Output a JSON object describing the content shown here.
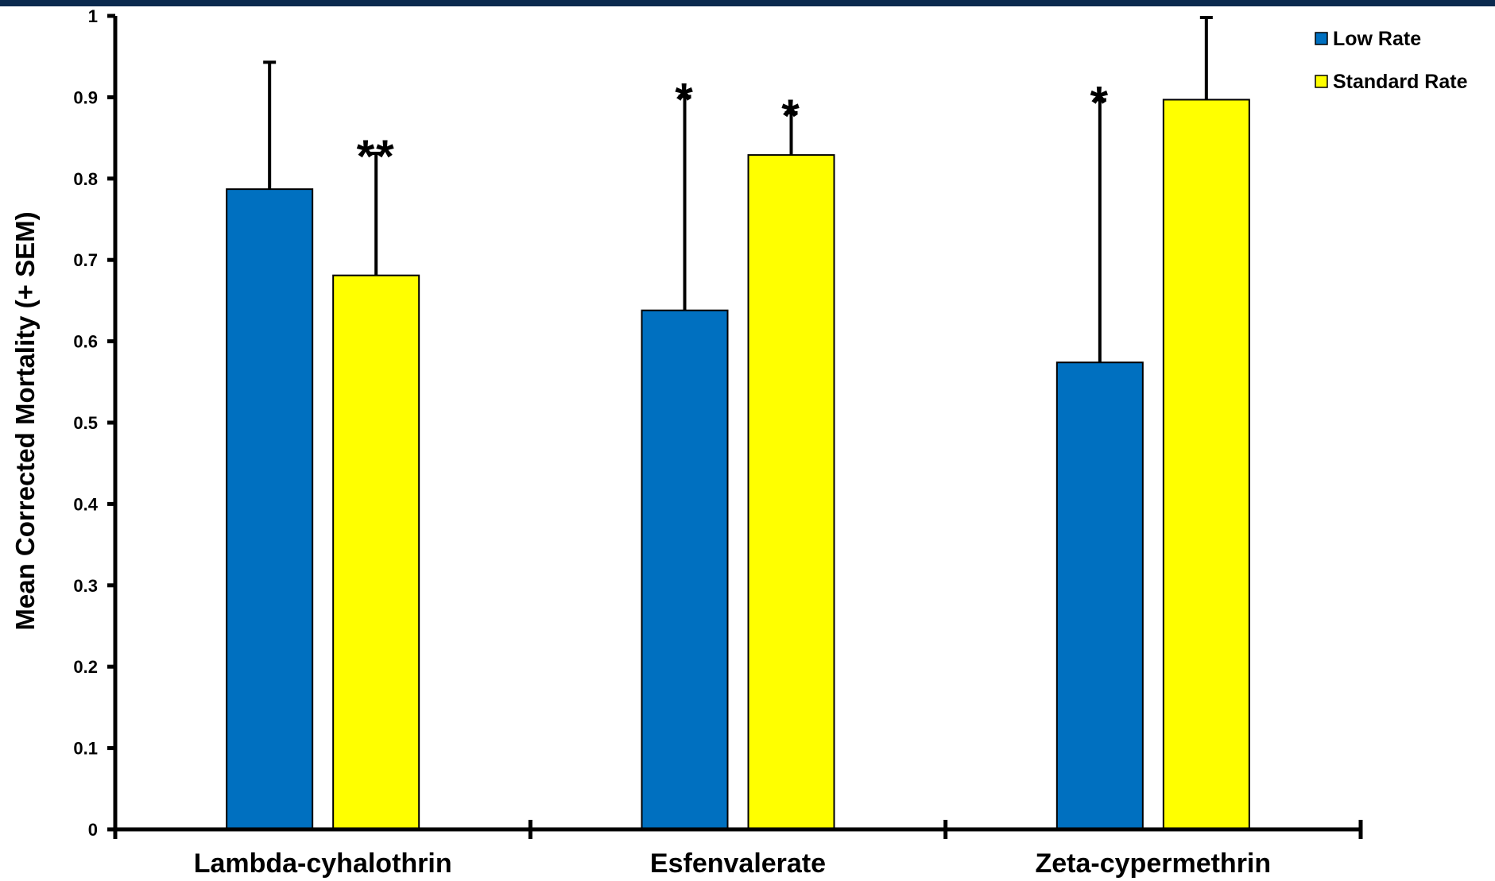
{
  "colors": {
    "header_band": "#0b2a4e",
    "low_rate": "#0070c0",
    "standard_rate": "#ffff00",
    "axis": "#000000"
  },
  "chart_data": {
    "type": "bar",
    "title": "",
    "xlabel": "",
    "ylabel": "Mean Corrected Mortality (+ SEM)",
    "ylim": [
      0,
      1
    ],
    "yticks": [
      0,
      0.1,
      0.2,
      0.3,
      0.4,
      0.5,
      0.6,
      0.7,
      0.8,
      0.9,
      1
    ],
    "ytick_labels": [
      "0",
      "0.1",
      "0.2",
      "0.3",
      "0.4",
      "0.5",
      "0.6",
      "0.7",
      "0.8",
      "0.9",
      "1"
    ],
    "categories": [
      "Lambda-cyhalothrin",
      "Esfenvalerate",
      "Zeta-cypermethrin"
    ],
    "series": [
      {
        "name": "Low Rate",
        "color": "#0070c0",
        "values": [
          0.787,
          0.638,
          0.574
        ],
        "error_upper": [
          0.943,
          0.901,
          0.897
        ],
        "annotations": [
          "",
          "*",
          "*"
        ]
      },
      {
        "name": "Standard Rate",
        "color": "#ffff00",
        "values": [
          0.681,
          0.829,
          0.897
        ],
        "error_upper": [
          0.831,
          0.881,
          0.998
        ],
        "annotations": [
          "**",
          "*",
          ""
        ]
      }
    ],
    "grid": false,
    "legend_position": "top-right"
  }
}
